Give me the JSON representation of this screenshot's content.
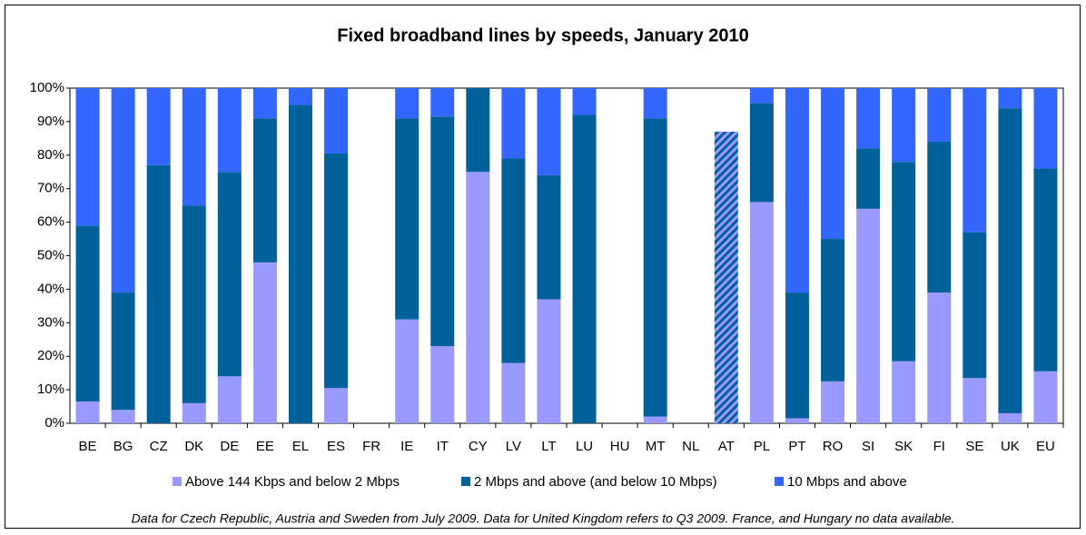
{
  "chart_data": {
    "type": "stacked_bar",
    "title": "Fixed broadband lines by speeds, January 2010",
    "categories": [
      "BE",
      "BG",
      "CZ",
      "DK",
      "DE",
      "EE",
      "EL",
      "ES",
      "FR",
      "IE",
      "IT",
      "CY",
      "LV",
      "LT",
      "LU",
      "HU",
      "MT",
      "NL",
      "AT",
      "PL",
      "PT",
      "RO",
      "SI",
      "SK",
      "FI",
      "SE",
      "UK",
      "EU"
    ],
    "series": [
      {
        "name": "Above 144 Kbps and below 2 Mbps",
        "color": "#9999ff",
        "values": [
          6.5,
          4,
          0,
          6,
          14,
          48,
          0,
          10.5,
          null,
          31,
          23,
          75,
          18,
          37,
          0,
          null,
          2,
          null,
          null,
          66,
          1.5,
          12.5,
          64,
          18.5,
          39,
          13.5,
          3,
          15.5
        ]
      },
      {
        "name": "2 Mbps and above (and below 10 Mbps)",
        "color": "#00619a",
        "values": [
          52.5,
          35,
          77,
          59,
          61,
          43,
          95,
          70,
          null,
          60,
          68.5,
          25,
          61,
          37,
          92,
          null,
          89,
          null,
          87,
          29.5,
          37.5,
          42.5,
          18,
          59.5,
          45,
          43.5,
          91,
          60.5
        ]
      },
      {
        "name": "10 Mbps and above",
        "color": "#3366ff",
        "values": [
          41,
          61,
          23,
          35,
          25,
          9,
          5,
          19.5,
          null,
          9,
          8.5,
          0,
          21,
          26,
          8,
          null,
          9,
          null,
          null,
          4.5,
          61,
          45,
          18,
          22,
          16,
          43,
          6,
          24
        ]
      }
    ],
    "hatched": [
      "AT"
    ],
    "ylim": [
      0,
      100
    ],
    "yticks": [
      {
        "value": 0,
        "label": "0%"
      },
      {
        "value": 10,
        "label": "10%"
      },
      {
        "value": 20,
        "label": "20%"
      },
      {
        "value": 30,
        "label": "30%"
      },
      {
        "value": 40,
        "label": "40%"
      },
      {
        "value": 50,
        "label": "50%"
      },
      {
        "value": 60,
        "label": "60%"
      },
      {
        "value": 70,
        "label": "70%"
      },
      {
        "value": 80,
        "label": "80%"
      },
      {
        "value": 90,
        "label": "90%"
      },
      {
        "value": 100,
        "label": "100%"
      }
    ],
    "grid": false,
    "note": "Data for Czech Republic, Austria and Sweden from July 2009. Data for United Kingdom refers to Q3 2009. France, and Hungary no data available."
  }
}
